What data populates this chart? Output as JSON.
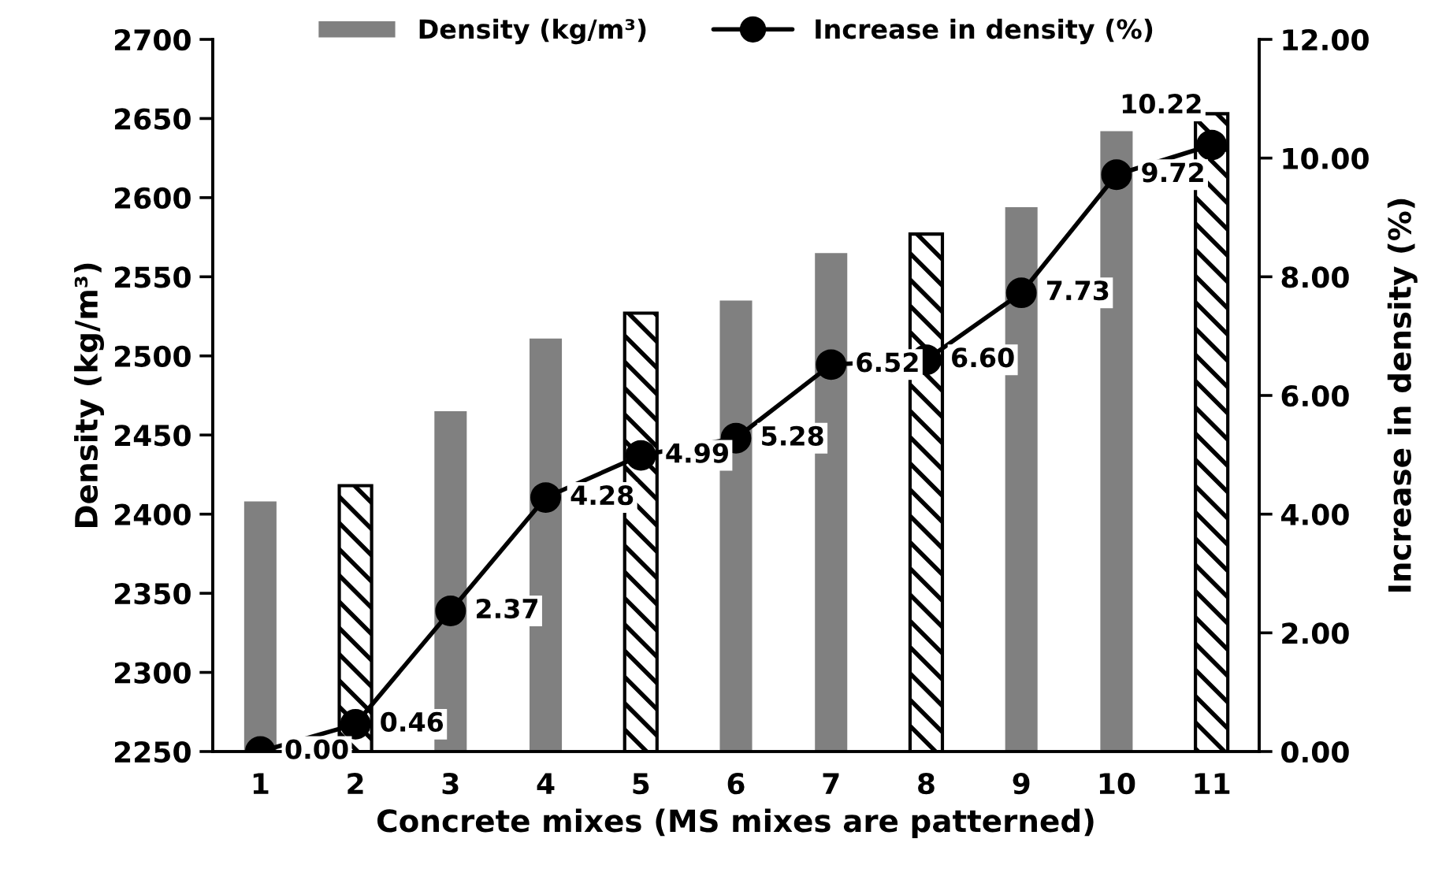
{
  "chart_data": {
    "type": "bar",
    "xlabel": "Concrete mixes (MS mixes are patterned)",
    "ylabel": "Density (kg/m³)",
    "y2label": "Increase in density (%)",
    "categories": [
      "1",
      "2",
      "3",
      "4",
      "5",
      "6",
      "7",
      "8",
      "9",
      "10",
      "11"
    ],
    "series": [
      {
        "name": "Density (kg/m³)",
        "color": "#808080",
        "values": [
          2408,
          2418,
          2465,
          2511,
          2527,
          2535,
          2565,
          2577,
          2594,
          2642,
          2653
        ],
        "colors": [
          "#808080",
          "#000000",
          "#808080",
          "#808080",
          "#000000",
          "#808080",
          "#808080",
          "#000000",
          "#808080",
          "#808080",
          "#000000"
        ]
      },
      {
        "name": "Increase in density (%)",
        "type": "line",
        "axis": "y2",
        "color": "#000000",
        "marker": "circle",
        "values": [
          0.0,
          0.46,
          2.37,
          4.28,
          4.99,
          5.28,
          6.52,
          6.6,
          7.73,
          9.72,
          10.22
        ],
        "value_labels": [
          "0.00",
          "0.46",
          "2.37",
          "4.28",
          "4.99",
          "5.28",
          "6.52",
          "6.60",
          "7.73",
          "9.72",
          "10.22"
        ]
      }
    ],
    "ylim": [
      2250,
      2700
    ],
    "yticks": [
      2250,
      2300,
      2350,
      2400,
      2450,
      2500,
      2550,
      2600,
      2650,
      2700
    ],
    "y2lim": [
      0,
      12
    ],
    "y2ticks": [
      {
        "value": 0,
        "label": "0.00"
      },
      {
        "value": 2,
        "label": "2.00"
      },
      {
        "value": 4,
        "label": "4.00"
      },
      {
        "value": 6,
        "label": "6.00"
      },
      {
        "value": 8,
        "label": "8.00"
      },
      {
        "value": 10,
        "label": "10.00"
      },
      {
        "value": 12,
        "label": "12.00"
      }
    ],
    "grid": false,
    "legend": "top"
  }
}
